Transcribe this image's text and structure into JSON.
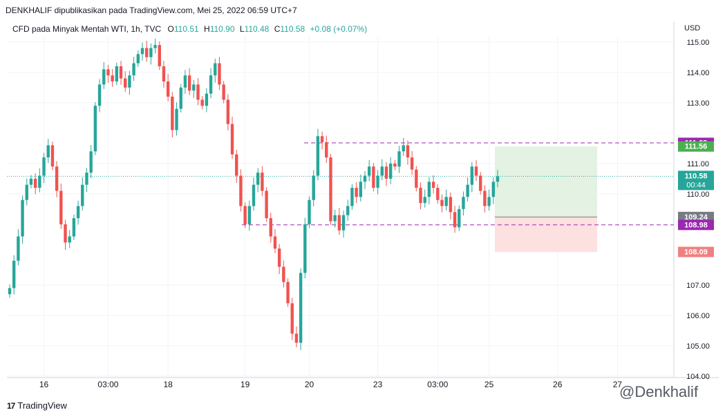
{
  "caption": "DENKHALIF dipublikasikan pada TradingView.com, Mei 25, 2022 06:59 UTC+7",
  "legend": {
    "symbol": "CFD pada Minyak Mentah WTI, 1h, TVC",
    "o_label": "O",
    "o": "110.51",
    "h_label": "H",
    "h": "110.90",
    "l_label": "L",
    "l": "110.48",
    "c_label": "C",
    "c": "110.58",
    "change": "+0.08 (+0.07%)"
  },
  "currency": "USD",
  "footer": {
    "logo_mark": "17",
    "logo_text": "TradingView"
  },
  "watermark": "@Denkhalif",
  "colors": {
    "up": "#26a69a",
    "down": "#ef5350",
    "profit_zone": "#e3f2e3",
    "loss_zone": "#fde0e0",
    "level_line": "#9c27b0",
    "current_line": "#26a69a"
  },
  "chart_data": {
    "type": "candlestick",
    "interval": "1h",
    "ylim": [
      104.0,
      115.2
    ],
    "y_ticks": [
      "104.00",
      "105.00",
      "106.00",
      "107.00",
      "110.00",
      "111.00",
      "113.00",
      "114.00",
      "115.00"
    ],
    "x_ticks": [
      "16",
      "03:00",
      "18",
      "19",
      "20",
      "23",
      "03:00",
      "25",
      "26",
      "27"
    ],
    "grid": true,
    "closes": [
      106.9,
      107.8,
      108.6,
      109.8,
      110.3,
      110.5,
      110.2,
      110.6,
      111.2,
      111.6,
      110.9,
      110.1,
      109.0,
      108.4,
      108.6,
      109.2,
      109.6,
      110.3,
      110.7,
      111.4,
      112.9,
      113.6,
      114.1,
      113.9,
      113.7,
      114.2,
      113.8,
      113.5,
      113.9,
      114.3,
      114.6,
      114.8,
      114.5,
      114.8,
      114.9,
      114.2,
      113.7,
      113.2,
      112.1,
      112.8,
      113.5,
      113.9,
      113.4,
      113.6,
      113.1,
      112.9,
      113.3,
      113.9,
      114.3,
      113.6,
      113.1,
      112.3,
      111.3,
      110.6,
      109.6,
      109.0,
      109.6,
      110.3,
      110.7,
      110.1,
      109.2,
      108.6,
      108.2,
      107.6,
      107.1,
      106.4,
      105.4,
      105.1,
      107.4,
      109.0,
      109.8,
      110.6,
      111.9,
      111.7,
      111.2,
      109.1,
      109.3,
      108.8,
      109.3,
      109.6,
      110.2,
      109.9,
      110.4,
      110.6,
      110.9,
      110.2,
      110.6,
      110.9,
      110.5,
      111.0,
      110.9,
      111.4,
      111.6,
      111.2,
      110.8,
      110.2,
      109.7,
      109.9,
      110.4,
      110.2,
      109.8,
      109.6,
      109.9,
      109.4,
      108.9,
      109.5,
      109.9,
      110.3,
      110.9,
      110.6,
      110.1,
      109.6,
      109.9,
      110.4,
      110.58
    ],
    "levels": [
      {
        "label": "111.68",
        "value": 111.68,
        "role": "take-profit",
        "bg": "#9c27b0"
      },
      {
        "label": "111.56",
        "value": 111.56,
        "role": "position-top",
        "bg": "#4caf50"
      },
      {
        "label": "110.58",
        "value": 110.58,
        "role": "last-price",
        "bg": "#26a69a",
        "countdown": "00:44"
      },
      {
        "label": "109.24",
        "value": 109.24,
        "role": "entry",
        "bg": "#787b86"
      },
      {
        "label": "108.98",
        "value": 108.98,
        "role": "support",
        "bg": "#9c27b0"
      },
      {
        "label": "108.09",
        "value": 108.09,
        "role": "stop-loss",
        "bg": "#f08080"
      }
    ],
    "position": {
      "entry": 109.24,
      "target": 111.56,
      "stop": 108.09
    }
  }
}
